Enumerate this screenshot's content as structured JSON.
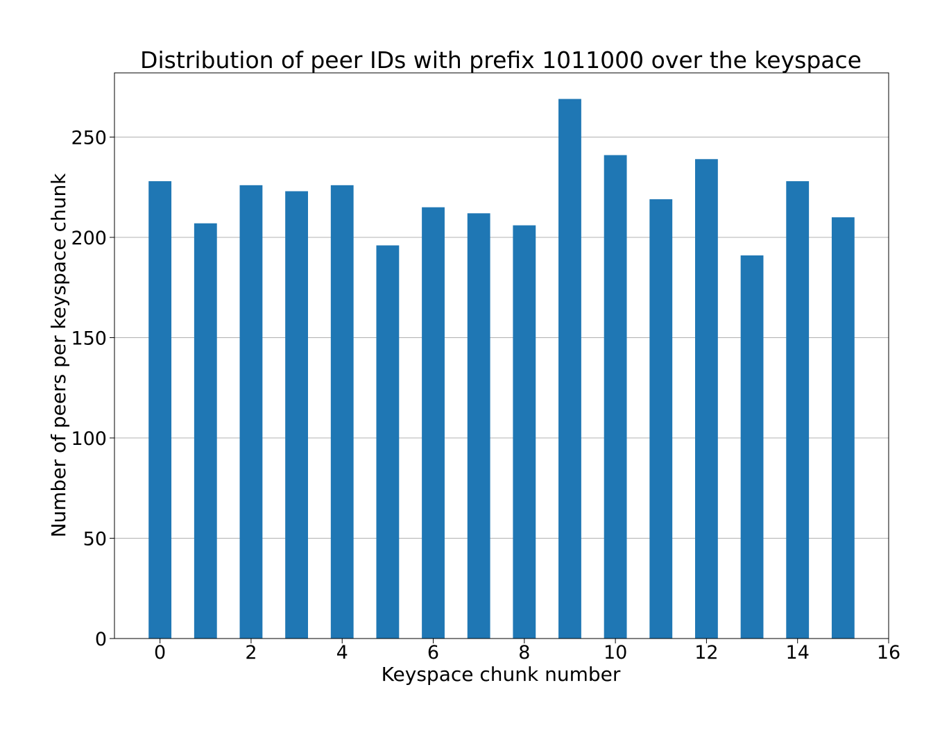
{
  "chart_data": {
    "type": "bar",
    "title": "Distribution of peer IDs with prefix 1011000 over the keyspace",
    "xlabel": "Keyspace chunk number",
    "ylabel": "Number of peers per keyspace chunk",
    "x": [
      0,
      1,
      2,
      3,
      4,
      5,
      6,
      7,
      8,
      9,
      10,
      11,
      12,
      13,
      14,
      15
    ],
    "values": [
      228,
      207,
      226,
      223,
      226,
      196,
      215,
      212,
      206,
      269,
      241,
      219,
      239,
      191,
      228,
      210
    ],
    "bar_width": 0.5,
    "xlim": [
      -1,
      16
    ],
    "ylim": [
      0,
      282
    ],
    "xticks": [
      0,
      2,
      4,
      6,
      8,
      10,
      12,
      14,
      16
    ],
    "yticks": [
      0,
      50,
      100,
      150,
      200,
      250
    ],
    "grid": "y",
    "bar_color": "#1f77b4",
    "grid_color": "#b0b0b0"
  }
}
